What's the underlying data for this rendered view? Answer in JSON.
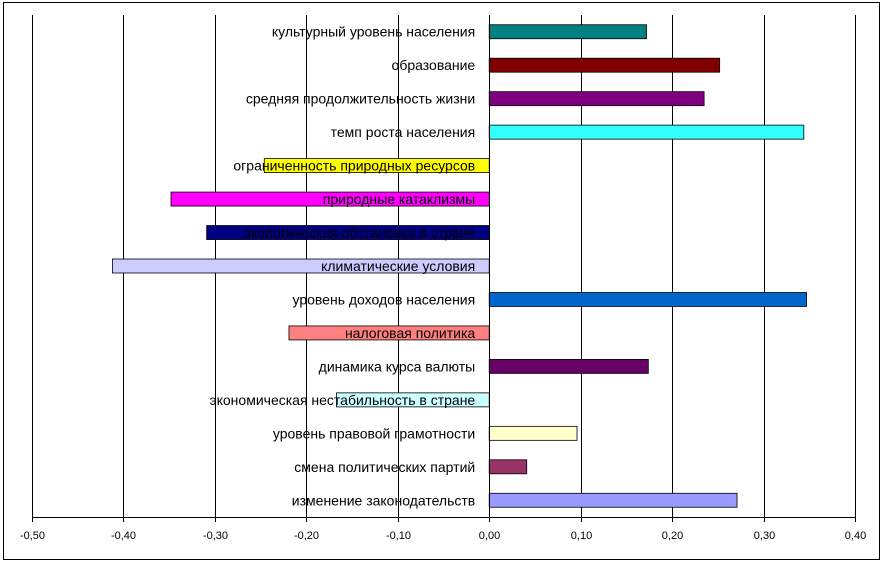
{
  "chart_data": {
    "type": "bar",
    "orientation": "horizontal",
    "title": "",
    "xlabel": "",
    "ylabel": "",
    "xlim": [
      -0.5,
      0.4
    ],
    "x_ticks": [
      "-0,50",
      "-0,40",
      "-0,30",
      "-0,20",
      "-0,10",
      "0,00",
      "0,10",
      "0,20",
      "0,30",
      "0,40"
    ],
    "grid": "vertical major",
    "legend": "none",
    "categories": [
      "культурный уровень населения",
      "образование",
      "средняя продолжительность жизни",
      "темп роста населения",
      "ограниченность природных ресурсов",
      "природные катаклизмы",
      "экологическая обстановка в стране",
      "климатические условия",
      "уровень доходов населения",
      "налоговая политика",
      "динамика курса валюты",
      "экономическая нестабильность в стране",
      "уровень правовой грамотности",
      "смена политических партий",
      "изменение законодательств"
    ],
    "values": [
      0.172,
      0.252,
      0.235,
      0.344,
      -0.246,
      -0.348,
      -0.309,
      -0.412,
      0.347,
      -0.219,
      0.174,
      -0.167,
      0.096,
      0.041,
      0.271
    ],
    "colors": [
      "#008080",
      "#800000",
      "#800080",
      "#33FFFF",
      "#FFFF00",
      "#FF00FF",
      "#000080",
      "#CCCCFF",
      "#0066CC",
      "#FF8080",
      "#660066",
      "#CCFFFF",
      "#FFFFCC",
      "#993366",
      "#9999FF"
    ]
  }
}
